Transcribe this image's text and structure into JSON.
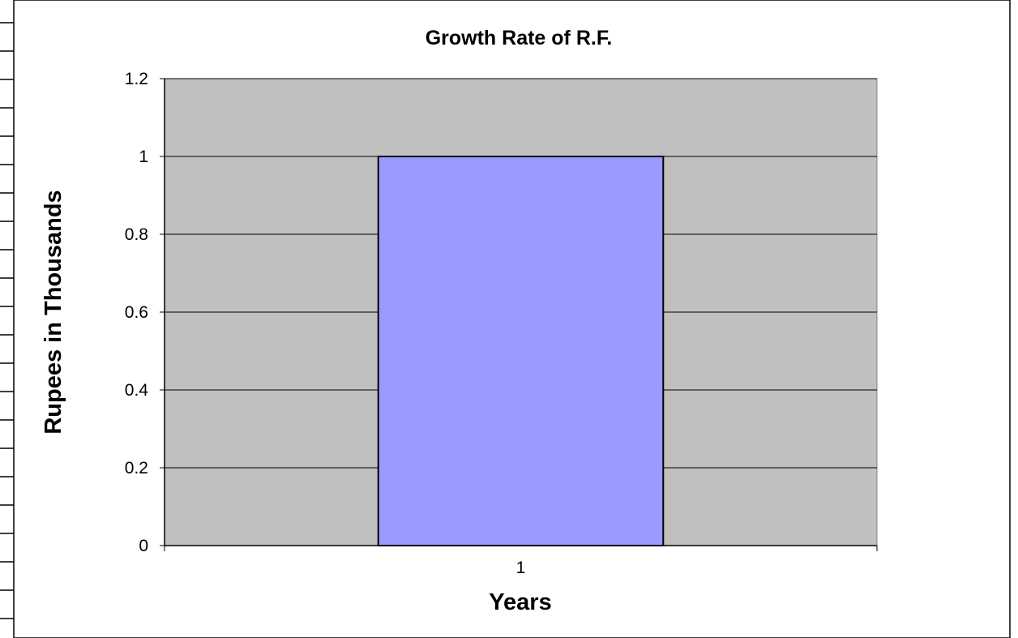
{
  "chart_data": {
    "type": "bar",
    "title": "Growth Rate of R.F.",
    "xlabel": "Years",
    "ylabel": "Rupees in Thousands",
    "categories": [
      "1"
    ],
    "values": [
      1
    ],
    "ylim": [
      0,
      1.2
    ],
    "yticks": [
      "0",
      "0.2",
      "0.4",
      "0.6",
      "0.8",
      "1",
      "1.2"
    ],
    "grid": true,
    "legend": "none",
    "colors": {
      "bar": "#9999ff",
      "plot_background": "#c0c0c0",
      "gridline": "#000000"
    }
  }
}
